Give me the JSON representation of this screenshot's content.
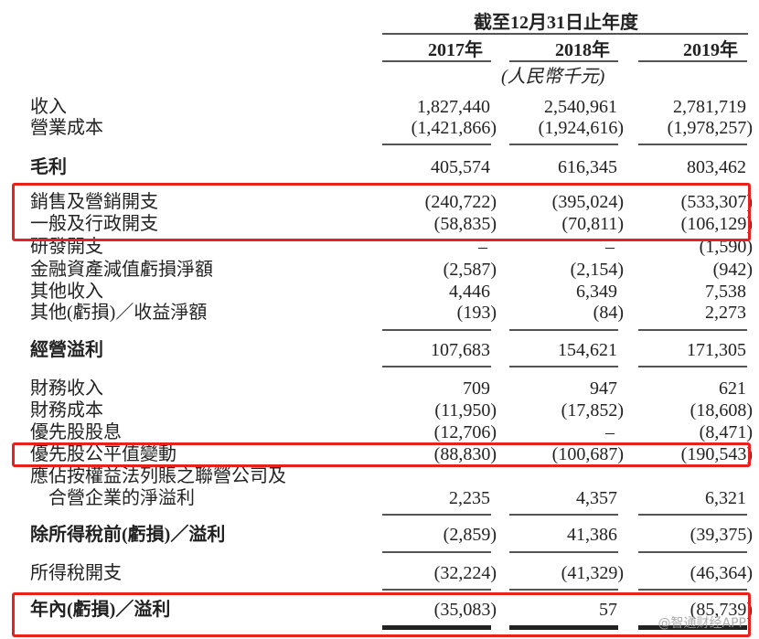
{
  "header": {
    "period": "截至12月31日止年度",
    "years": [
      "2017年",
      "2018年",
      "2019年"
    ],
    "unit": "(人民幣千元)"
  },
  "rows": [
    {
      "label": "收入",
      "values": [
        "1,827,440",
        "2,540,961",
        "2,781,719"
      ]
    },
    {
      "label": "營業成本",
      "values": [
        "(1,421,866)",
        "(1,924,616)",
        "(1,978,257)"
      ]
    },
    {
      "label": "毛利",
      "values": [
        "405,574",
        "616,345",
        "803,462"
      ],
      "bold": true
    },
    {
      "label": "銷售及營銷開支",
      "values": [
        "(240,722)",
        "(395,024)",
        "(533,307)"
      ],
      "highlighted": true
    },
    {
      "label": "一般及行政開支",
      "values": [
        "(58,835)",
        "(70,811)",
        "(106,129)"
      ],
      "highlighted": true
    },
    {
      "label": "研發開支",
      "values": [
        "–",
        "–",
        "(1,590)"
      ]
    },
    {
      "label": "金融資產減值虧損淨額",
      "values": [
        "(2,587)",
        "(2,154)",
        "(942)"
      ]
    },
    {
      "label": "其他收入",
      "values": [
        "4,446",
        "6,349",
        "7,538"
      ]
    },
    {
      "label": "其他(虧損)／收益淨額",
      "values": [
        "(193)",
        "(84)",
        "2,273"
      ]
    },
    {
      "label": "經營溢利",
      "values": [
        "107,683",
        "154,621",
        "171,305"
      ],
      "bold": true
    },
    {
      "label": "財務收入",
      "values": [
        "709",
        "947",
        "621"
      ]
    },
    {
      "label": "財務成本",
      "values": [
        "(11,950)",
        "(17,852)",
        "(18,608)"
      ]
    },
    {
      "label": "優先股股息",
      "values": [
        "(12,706)",
        "–",
        "(8,471)"
      ]
    },
    {
      "label": "優先股公平值變動",
      "values": [
        "(88,830)",
        "(100,687)",
        "(190,543)"
      ],
      "highlighted": true
    },
    {
      "label": "應佔按權益法列賬之聯營公司及",
      "values": [
        "",
        "",
        ""
      ]
    },
    {
      "label": "合營企業的淨溢利",
      "values": [
        "2,235",
        "4,357",
        "6,321"
      ],
      "indent": true
    },
    {
      "label": "除所得稅前(虧損)／溢利",
      "values": [
        "(2,859)",
        "41,386",
        "(39,375)"
      ],
      "bold": true
    },
    {
      "label": "所得稅開支",
      "values": [
        "(32,224)",
        "(41,329)",
        "(46,364)"
      ]
    },
    {
      "label": "年內(虧損)／溢利",
      "values": [
        "(35,083)",
        "57",
        "(85,739)"
      ],
      "bold": true,
      "highlighted": true
    }
  ],
  "watermark": "@智通财经APP",
  "colors": {
    "highlight_box": "#e8211e"
  }
}
